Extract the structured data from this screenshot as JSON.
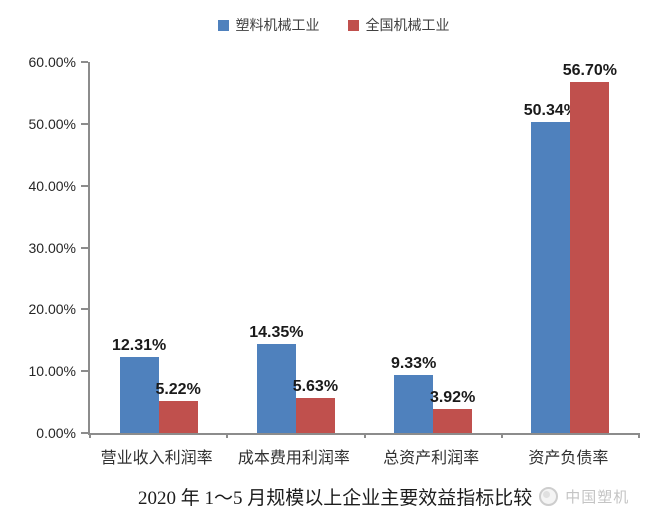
{
  "chart_data": {
    "type": "bar",
    "categories": [
      "营业收入利润率",
      "成本费用利润率",
      "总资产利润率",
      "资产负债率"
    ],
    "series": [
      {
        "name": "塑料机械工业",
        "color": "#4F81BD",
        "values": [
          12.31,
          14.35,
          9.33,
          50.34
        ],
        "labels": [
          "12.31%",
          "14.35%",
          "9.33%",
          "50.34%"
        ]
      },
      {
        "name": "全国机械工业",
        "color": "#C0504D",
        "values": [
          5.22,
          5.63,
          3.92,
          56.7
        ],
        "labels": [
          "5.22%",
          "5.63%",
          "3.92%",
          "56.70%"
        ]
      }
    ],
    "ylim": [
      0,
      60
    ],
    "y_ticks": [
      "60.00%",
      "50.00%",
      "40.00%",
      "30.00%",
      "20.00%",
      "10.00%",
      "0.00%"
    ],
    "grid": false,
    "legend_position": "top",
    "title": "2020 年 1～5 月规模以上企业主要效益指标比较",
    "xlabel": "",
    "ylabel": ""
  },
  "caption": {
    "title": "2020 年 1～5 月规模以上企业主要效益指标比较",
    "watermark": "中国塑机"
  }
}
